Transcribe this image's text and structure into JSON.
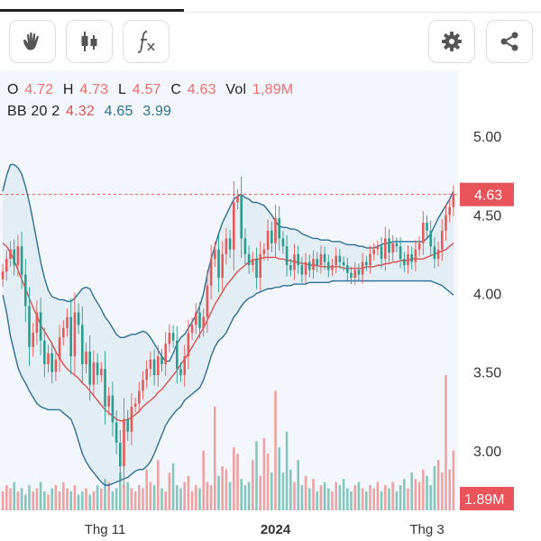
{
  "toolbar": {
    "left_tools": [
      {
        "name": "hand-icon"
      },
      {
        "name": "candlestick-icon"
      },
      {
        "name": "function-icon"
      }
    ],
    "right_tools": [
      {
        "name": "gear-icon"
      },
      {
        "name": "share-icon"
      }
    ]
  },
  "legend": {
    "ohlc": {
      "o_label": "O",
      "o": "4.72",
      "h_label": "H",
      "h": "4.73",
      "l_label": "L",
      "l": "4.57",
      "c_label": "C",
      "c": "4.63",
      "vol_label": "Vol",
      "vol": "1,89M"
    },
    "bb": {
      "label": "BB 20 2",
      "basis": "4.32",
      "upper": "4.65",
      "lower": "3.99"
    }
  },
  "colors": {
    "up": "#e25c5c",
    "down": "#2c9c8c",
    "band": "#2e6f96",
    "basis": "#d9534f",
    "band_fill": "#d6e6ef",
    "vol_up": "#eda3a3",
    "vol_down": "#86c7bd"
  },
  "chart_data": {
    "type": "candlestick",
    "y_ticks": [
      "5.00",
      "4.50",
      "4.00",
      "3.50",
      "3.00"
    ],
    "ylim": [
      2.62,
      5.42
    ],
    "x_ticks": [
      {
        "label": "Thg 11",
        "i": 27
      },
      {
        "label": "2024",
        "i": 72
      },
      {
        "label": "Thg 3",
        "i": 112
      }
    ],
    "last_price_label": "4.63",
    "last_volume_label": "1.89M",
    "close": [
      4.14,
      4.22,
      4.28,
      4.18,
      4.3,
      4.12,
      3.92,
      3.66,
      3.75,
      3.88,
      3.7,
      3.55,
      3.62,
      3.5,
      3.58,
      3.72,
      3.78,
      3.85,
      3.6,
      3.88,
      3.8,
      3.55,
      3.63,
      3.42,
      3.56,
      3.48,
      3.52,
      3.28,
      3.35,
      3.18,
      3.05,
      2.9,
      3.2,
      3.12,
      3.28,
      3.3,
      3.38,
      3.45,
      3.52,
      3.58,
      3.48,
      3.6,
      3.55,
      3.68,
      3.75,
      3.7,
      3.52,
      3.48,
      3.6,
      3.75,
      3.8,
      3.88,
      3.78,
      3.85,
      4.05,
      4.22,
      4.28,
      4.1,
      4.25,
      4.35,
      4.28,
      4.58,
      4.62,
      4.35,
      4.25,
      4.18,
      4.22,
      4.1,
      4.25,
      4.28,
      4.4,
      4.32,
      4.48,
      4.35,
      4.3,
      4.18,
      4.15,
      4.25,
      4.18,
      4.12,
      4.2,
      4.15,
      4.22,
      4.18,
      4.25,
      4.2,
      4.15,
      4.18,
      4.24,
      4.2,
      4.18,
      4.13,
      4.1,
      4.15,
      4.12,
      4.2,
      4.18,
      4.25,
      4.28,
      4.3,
      4.22,
      4.35,
      4.26,
      4.32,
      4.3,
      4.22,
      4.18,
      4.25,
      4.2,
      4.28,
      4.32,
      4.45,
      4.4,
      4.3,
      4.22,
      4.28,
      4.4,
      4.5,
      4.55,
      4.63
    ],
    "volume_m": [
      0.6,
      0.8,
      0.7,
      0.9,
      0.6,
      0.7,
      0.5,
      0.8,
      0.6,
      0.7,
      0.9,
      0.6,
      0.5,
      0.7,
      0.8,
      0.6,
      0.9,
      0.7,
      0.6,
      0.8,
      0.5,
      0.6,
      0.7,
      0.5,
      0.6,
      0.8,
      0.7,
      1.0,
      0.9,
      0.6,
      0.7,
      1.2,
      0.8,
      0.9,
      0.7,
      0.6,
      0.8,
      0.7,
      1.3,
      0.9,
      0.8,
      1.6,
      0.7,
      0.6,
      1.2,
      1.5,
      0.8,
      0.7,
      0.9,
      1.1,
      0.6,
      0.8,
      0.7,
      1.9,
      0.9,
      0.8,
      3.3,
      1.1,
      1.4,
      1.3,
      0.9,
      2.0,
      1.8,
      1.0,
      0.8,
      0.9,
      1.6,
      2.2,
      1.1,
      2.3,
      1.8,
      1.2,
      3.8,
      2.0,
      1.2,
      2.5,
      1.3,
      0.9,
      1.6,
      0.8,
      1.1,
      0.7,
      1.0,
      0.6,
      0.8,
      0.9,
      0.7,
      0.6,
      0.9,
      0.8,
      1.0,
      0.7,
      0.6,
      0.8,
      0.9,
      0.7,
      0.6,
      0.8,
      0.7,
      0.9,
      0.6,
      0.8,
      0.7,
      0.9,
      0.6,
      0.8,
      1.0,
      0.7,
      1.2,
      1.0,
      0.9,
      1.3,
      1.1,
      0.8,
      1.4,
      1.6,
      1.2,
      4.3,
      1.3,
      1.9
    ],
    "bb_upper": [
      4.65,
      4.75,
      4.82,
      4.82,
      4.8,
      4.76,
      4.68,
      4.58,
      4.46,
      4.33,
      4.2,
      4.1,
      4.02,
      3.98,
      3.97,
      3.96,
      3.96,
      3.95,
      3.95,
      3.97,
      4.0,
      4.03,
      4.04,
      4.03,
      3.98,
      3.94,
      3.9,
      3.85,
      3.82,
      3.78,
      3.74,
      3.72,
      3.72,
      3.73,
      3.74,
      3.74,
      3.75,
      3.76,
      3.75,
      3.72,
      3.68,
      3.64,
      3.6,
      3.57,
      3.57,
      3.62,
      3.68,
      3.72,
      3.74,
      3.78,
      3.82,
      3.86,
      3.92,
      4.0,
      4.12,
      4.22,
      4.3,
      4.38,
      4.45,
      4.5,
      4.55,
      4.6,
      4.62,
      4.63,
      4.61,
      4.6,
      4.58,
      4.58,
      4.57,
      4.56,
      4.53,
      4.5,
      4.46,
      4.43,
      4.42,
      4.42,
      4.41,
      4.41,
      4.4,
      4.38,
      4.37,
      4.36,
      4.35,
      4.35,
      4.34,
      4.34,
      4.34,
      4.33,
      4.33,
      4.33,
      4.32,
      4.31,
      4.31,
      4.31,
      4.3,
      4.3,
      4.29,
      4.29,
      4.29,
      4.3,
      4.31,
      4.32,
      4.32,
      4.33,
      4.33,
      4.33,
      4.33,
      4.33,
      4.33,
      4.33,
      4.33,
      4.33,
      4.35,
      4.38,
      4.43,
      4.48,
      4.52,
      4.56,
      4.6,
      4.65
    ],
    "bb_basis": [
      4.32,
      4.3,
      4.26,
      4.21,
      4.15,
      4.09,
      4.03,
      3.97,
      3.91,
      3.86,
      3.8,
      3.76,
      3.72,
      3.68,
      3.63,
      3.59,
      3.55,
      3.52,
      3.5,
      3.48,
      3.46,
      3.43,
      3.41,
      3.38,
      3.35,
      3.32,
      3.29,
      3.26,
      3.24,
      3.22,
      3.2,
      3.19,
      3.19,
      3.2,
      3.21,
      3.23,
      3.25,
      3.28,
      3.3,
      3.32,
      3.34,
      3.37,
      3.39,
      3.42,
      3.45,
      3.48,
      3.51,
      3.55,
      3.58,
      3.62,
      3.66,
      3.7,
      3.74,
      3.78,
      3.83,
      3.88,
      3.93,
      3.97,
      4.01,
      4.05,
      4.08,
      4.11,
      4.14,
      4.16,
      4.18,
      4.2,
      4.21,
      4.22,
      4.22,
      4.23,
      4.23,
      4.23,
      4.23,
      4.22,
      4.22,
      4.21,
      4.21,
      4.2,
      4.2,
      4.19,
      4.19,
      4.18,
      4.18,
      4.18,
      4.17,
      4.17,
      4.17,
      4.17,
      4.17,
      4.17,
      4.16,
      4.16,
      4.16,
      4.16,
      4.16,
      4.16,
      4.17,
      4.17,
      4.17,
      4.18,
      4.18,
      4.19,
      4.19,
      4.2,
      4.2,
      4.21,
      4.21,
      4.21,
      4.22,
      4.22,
      4.22,
      4.22,
      4.23,
      4.24,
      4.25,
      4.26,
      4.27,
      4.28,
      4.3,
      4.32
    ],
    "bb_lower": [
      3.99,
      3.88,
      3.73,
      3.63,
      3.53,
      3.47,
      3.43,
      3.38,
      3.34,
      3.3,
      3.28,
      3.27,
      3.26,
      3.26,
      3.26,
      3.26,
      3.24,
      3.22,
      3.2,
      3.14,
      3.06,
      2.98,
      2.93,
      2.89,
      2.86,
      2.83,
      2.8,
      2.78,
      2.78,
      2.79,
      2.8,
      2.81,
      2.82,
      2.83,
      2.85,
      2.87,
      2.88,
      2.88,
      2.9,
      2.93,
      2.98,
      3.04,
      3.1,
      3.16,
      3.2,
      3.23,
      3.26,
      3.28,
      3.32,
      3.34,
      3.36,
      3.38,
      3.4,
      3.45,
      3.52,
      3.6,
      3.66,
      3.7,
      3.72,
      3.75,
      3.8,
      3.85,
      3.88,
      3.92,
      3.95,
      3.97,
      3.98,
      4.0,
      4.01,
      4.02,
      4.03,
      4.03,
      4.04,
      4.04,
      4.05,
      4.05,
      4.05,
      4.06,
      4.06,
      4.06,
      4.06,
      4.07,
      4.07,
      4.07,
      4.07,
      4.07,
      4.07,
      4.08,
      4.08,
      4.08,
      4.08,
      4.08,
      4.08,
      4.08,
      4.08,
      4.08,
      4.08,
      4.08,
      4.08,
      4.08,
      4.08,
      4.08,
      4.08,
      4.08,
      4.08,
      4.08,
      4.08,
      4.08,
      4.08,
      4.08,
      4.08,
      4.08,
      4.08,
      4.08,
      4.07,
      4.06,
      4.05,
      4.03,
      4.01,
      3.99
    ]
  }
}
